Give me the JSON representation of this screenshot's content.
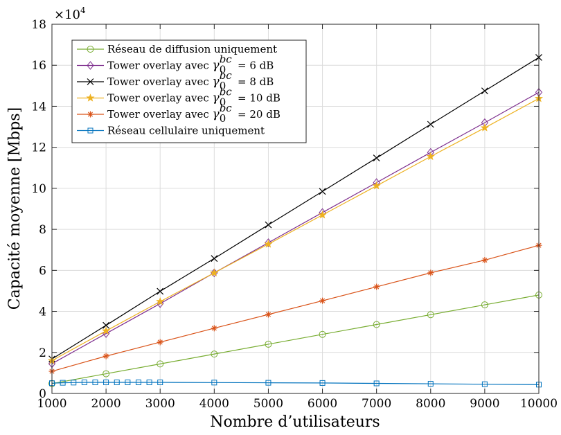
{
  "chart_data": {
    "type": "line",
    "xlabel": "Nombre d’utilisateurs",
    "ylabel": "Capacité moyenne [Mbps]",
    "y_multiplier_base": "×10",
    "y_multiplier_exp": "4",
    "xlim": [
      1000,
      10000
    ],
    "ylim": [
      0,
      18
    ],
    "xticks": [
      1000,
      2000,
      3000,
      4000,
      5000,
      6000,
      7000,
      8000,
      9000,
      10000
    ],
    "yticks": [
      0,
      2,
      4,
      6,
      8,
      10,
      12,
      14,
      16,
      18
    ],
    "grid": true,
    "legend_position": "top-left",
    "series": [
      {
        "name": "Réseau de diffusion uniquement",
        "color": "#77ac30",
        "marker": "circle",
        "x": [
          1000,
          2000,
          3000,
          4000,
          5000,
          6000,
          7000,
          8000,
          9000,
          10000
        ],
        "y": [
          0.48,
          0.96,
          1.44,
          1.92,
          2.4,
          2.88,
          3.36,
          3.84,
          4.32,
          4.8
        ]
      },
      {
        "name": "Tower overlay avec γ0bc = 6 dB",
        "name_prefix": "Tower overlay avec ",
        "name_suffix": " = 6 dB",
        "color": "#7e2f8e",
        "marker": "diamond",
        "x": [
          1000,
          2000,
          3000,
          4000,
          5000,
          6000,
          7000,
          8000,
          9000,
          10000
        ],
        "y": [
          1.45,
          2.92,
          4.38,
          5.88,
          7.35,
          8.82,
          10.28,
          11.75,
          13.2,
          14.68
        ]
      },
      {
        "name": "Tower overlay avec γ0bc = 8 dB",
        "name_prefix": "Tower overlay avec ",
        "name_suffix": " = 8 dB",
        "color": "#000000",
        "marker": "x",
        "x": [
          1000,
          2000,
          3000,
          4000,
          5000,
          6000,
          7000,
          8000,
          9000,
          10000
        ],
        "y": [
          1.68,
          3.32,
          4.98,
          6.58,
          8.22,
          9.85,
          11.48,
          13.12,
          14.75,
          16.38
        ]
      },
      {
        "name": "Tower overlay avec γ0bc = 10 dB",
        "name_prefix": "Tower overlay avec ",
        "name_suffix": " = 10 dB",
        "color": "#edb120",
        "marker": "star",
        "x": [
          1000,
          2000,
          3000,
          4000,
          5000,
          6000,
          7000,
          8000,
          9000,
          10000
        ],
        "y": [
          1.6,
          3.05,
          4.48,
          5.88,
          7.28,
          8.7,
          10.12,
          11.55,
          12.95,
          14.38
        ]
      },
      {
        "name": "Tower overlay avec γ0bc = 20 dB",
        "name_prefix": "Tower overlay avec ",
        "name_suffix": " = 20 dB",
        "color": "#d95319",
        "marker": "asterisk",
        "x": [
          1000,
          2000,
          3000,
          4000,
          5000,
          6000,
          7000,
          8000,
          9000,
          10000
        ],
        "y": [
          1.08,
          1.82,
          2.5,
          3.18,
          3.85,
          4.52,
          5.2,
          5.88,
          6.5,
          7.22
        ]
      },
      {
        "name": "Réseau cellulaire uniquement",
        "color": "#0072bd",
        "marker": "square",
        "x": [
          1000,
          1200,
          1400,
          1600,
          1800,
          2000,
          2200,
          2400,
          2600,
          2800,
          3000,
          4000,
          5000,
          6000,
          7000,
          8000,
          9000,
          10000
        ],
        "y": [
          0.5,
          0.52,
          0.53,
          0.54,
          0.54,
          0.54,
          0.54,
          0.54,
          0.54,
          0.54,
          0.54,
          0.53,
          0.52,
          0.51,
          0.49,
          0.47,
          0.45,
          0.43
        ]
      }
    ]
  }
}
